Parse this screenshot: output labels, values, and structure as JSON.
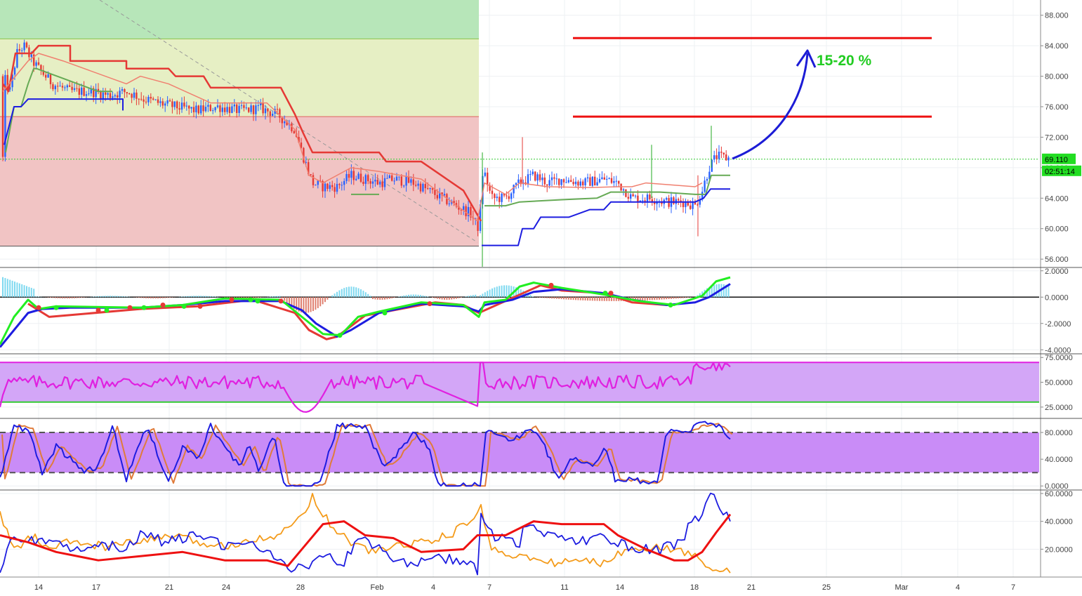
{
  "chart_data": [
    {
      "type": "candlestick",
      "panel": "price",
      "ylim": [
        55,
        90
      ],
      "y_ticks": [
        "88.000",
        "84.000",
        "80.000",
        "76.000",
        "72.000",
        "68.000",
        "64.000",
        "60.000",
        "56.000"
      ],
      "last_price": "69.110",
      "countdown": "02:51:14",
      "annotation": "15-20 %",
      "resistance_levels": [
        85.0,
        74.7
      ],
      "zones": [
        {
          "color": "#b7e6b9",
          "from": 84.9,
          "to": 90
        },
        {
          "color": "#e6efc4",
          "from": 74.7,
          "to": 84.9
        },
        {
          "color": "#f1c4c4",
          "from": 57.7,
          "to": 74.7
        }
      ],
      "last_price_line": 69.11,
      "colors": {
        "up": "#2962ff",
        "down": "#e53935",
        "trail_red": "#e53935",
        "trail_salmon": "#f08070",
        "trail_green": "#66aa55",
        "trail_blue": "#1d1de0",
        "arrow": "#1c1cd6",
        "annotation": "#22cc22",
        "level": "#ee1111"
      }
    },
    {
      "type": "line",
      "panel": "macd",
      "ylim": [
        -4.2,
        2.2
      ],
      "y_ticks": [
        "2.0000",
        "0.0000",
        "-2.0000",
        "-4.0000"
      ],
      "series_colors": [
        "#1d1de0",
        "#22ee22",
        "#e53935"
      ]
    },
    {
      "type": "line",
      "panel": "rsi",
      "ylim": [
        15,
        78
      ],
      "y_ticks": [
        "75.0000",
        "50.0000",
        "25.0000"
      ],
      "band": [
        30,
        70
      ],
      "series_colors": [
        "#e020e0"
      ]
    },
    {
      "type": "line",
      "panel": "stochastic",
      "ylim": [
        -5,
        100
      ],
      "y_ticks": [
        "80.0000",
        "40.0000",
        "0.0000"
      ],
      "band": [
        20,
        80
      ],
      "series_colors": [
        "#1d1de0",
        "#e07b3a"
      ]
    },
    {
      "type": "line",
      "panel": "dmi",
      "ylim": [
        0,
        62
      ],
      "y_ticks": [
        "60.0000",
        "40.0000",
        "20.0000"
      ],
      "series_colors": [
        "#1d1de0",
        "#ee1111",
        "#f49b1a"
      ]
    }
  ],
  "x_axis": {
    "labels": [
      "14",
      "17",
      "21",
      "24",
      "28",
      "Feb",
      "4",
      "7",
      "11",
      "14",
      "18",
      "21",
      "25",
      "Mar",
      "4",
      "7"
    ]
  }
}
